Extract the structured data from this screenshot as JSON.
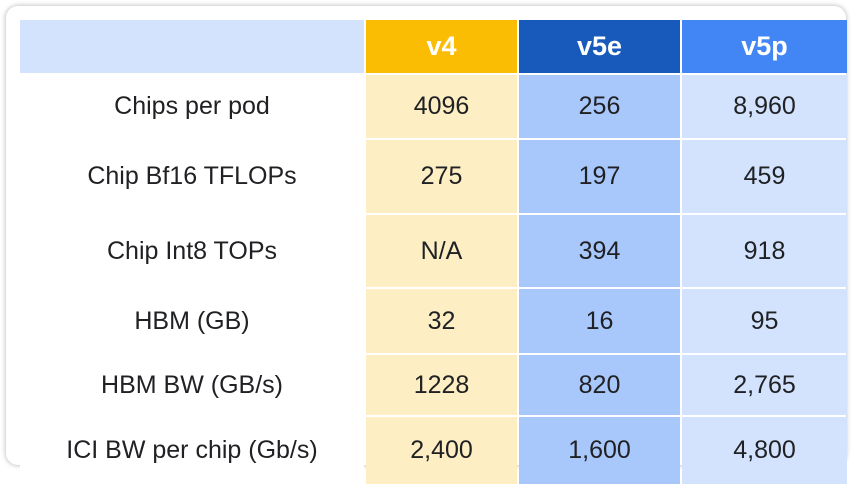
{
  "chart_data": {
    "type": "table",
    "columns": [
      "",
      "v4",
      "v5e",
      "v5p"
    ],
    "rows": [
      {
        "label": "Chips per pod",
        "values": [
          "4096",
          "256",
          "8,960"
        ]
      },
      {
        "label": "Chip Bf16 TFLOPs",
        "values": [
          "275",
          "197",
          "459"
        ]
      },
      {
        "label": "Chip Int8 TOPs",
        "values": [
          "N/A",
          "394",
          "918"
        ]
      },
      {
        "label": "HBM (GB)",
        "values": [
          "32",
          "16",
          "95"
        ]
      },
      {
        "label": "HBM BW (GB/s)",
        "values": [
          "1228",
          "820",
          "2,765"
        ]
      },
      {
        "label": "ICI BW per chip (Gb/s)",
        "values": [
          "2,400",
          "1,600",
          "4,800"
        ]
      }
    ],
    "colors": {
      "v4_header": "#fbbc04",
      "v5e_header": "#185abc",
      "v5p_header": "#4285f4",
      "v4_cell": "#fdefc3",
      "v5e_cell": "#a8c7fa",
      "v5p_cell": "#d3e3fd"
    }
  }
}
